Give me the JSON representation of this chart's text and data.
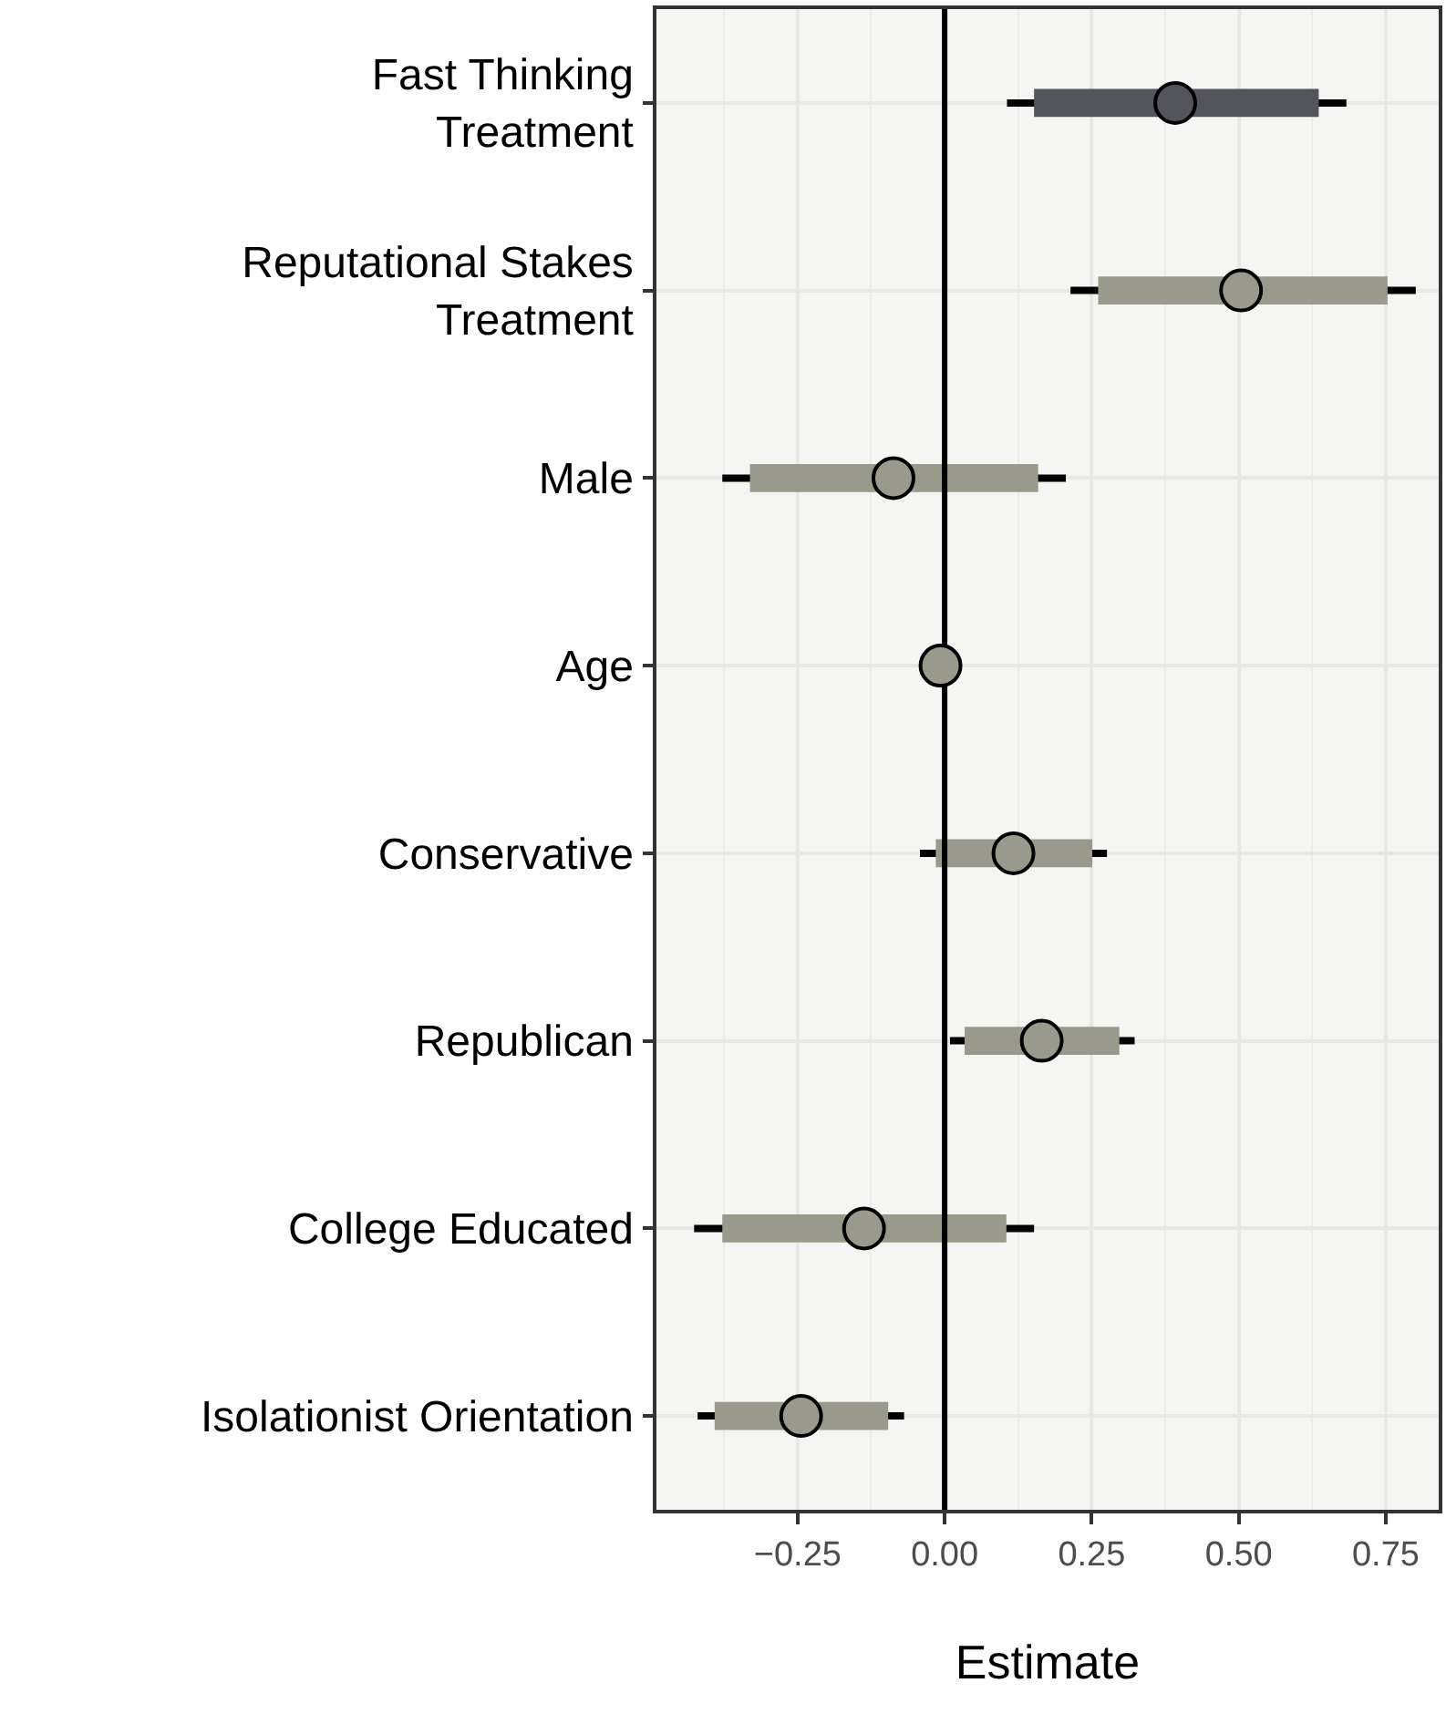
{
  "chart_data": {
    "type": "scatter",
    "orientation": "horizontal",
    "xlabel": "Estimate",
    "categories": [
      "Fast Thinking\nTreatment",
      "Reputational Stakes\nTreatment",
      "Male",
      "Age",
      "Conservative",
      "Republican",
      "College Educated",
      "Isolationist Orientation"
    ],
    "series": [
      {
        "type": "bar",
        "colors": [
          "#54545e",
          "#9a9a8c",
          "#9a9a8c",
          "#9a9a8c",
          "#9a9a8c",
          "#9a9a8c",
          "#9a9a8c",
          "#9a9a8c"
        ],
        "base": [
          0.152,
          0.261,
          -0.331,
          null,
          -0.015,
          0.034,
          -0.378,
          -0.391
        ],
        "values": [
          0.484,
          0.492,
          0.49,
          null,
          0.266,
          0.263,
          0.483,
          0.295
        ]
      },
      {
        "marker": "circle",
        "colors": [
          "#54545e",
          "#9a9a8c",
          "#9a9a8c",
          "#9a9a8c",
          "#9a9a8c",
          "#9a9a8c",
          "#9a9a8c",
          "#9a9a8c"
        ],
        "values": [
          0.392,
          0.504,
          -0.087,
          -0.007,
          0.117,
          0.165,
          -0.137,
          -0.244
        ],
        "errors": [
          [
            0.106,
            0.683
          ],
          [
            0.214,
            0.801
          ],
          [
            -0.378,
            0.206
          ],
          null,
          [
            -0.042,
            0.276
          ],
          [
            0.009,
            0.323
          ],
          [
            -0.426,
            0.152
          ],
          [
            -0.42,
            -0.069
          ]
        ]
      }
    ],
    "xlim": [
      -0.49,
      0.84
    ],
    "xticks": [
      {
        "value": -0.25,
        "label": "−0.25"
      },
      {
        "value": 0,
        "label": "0.00"
      },
      {
        "value": 0.25,
        "label": "0.25"
      },
      {
        "value": 0.5,
        "label": "0.50"
      },
      {
        "value": 0.75,
        "label": "0.75"
      }
    ],
    "ref_lines": [
      {
        "axis": "x",
        "value": 0,
        "color": "#000000"
      }
    ],
    "grid": true
  }
}
